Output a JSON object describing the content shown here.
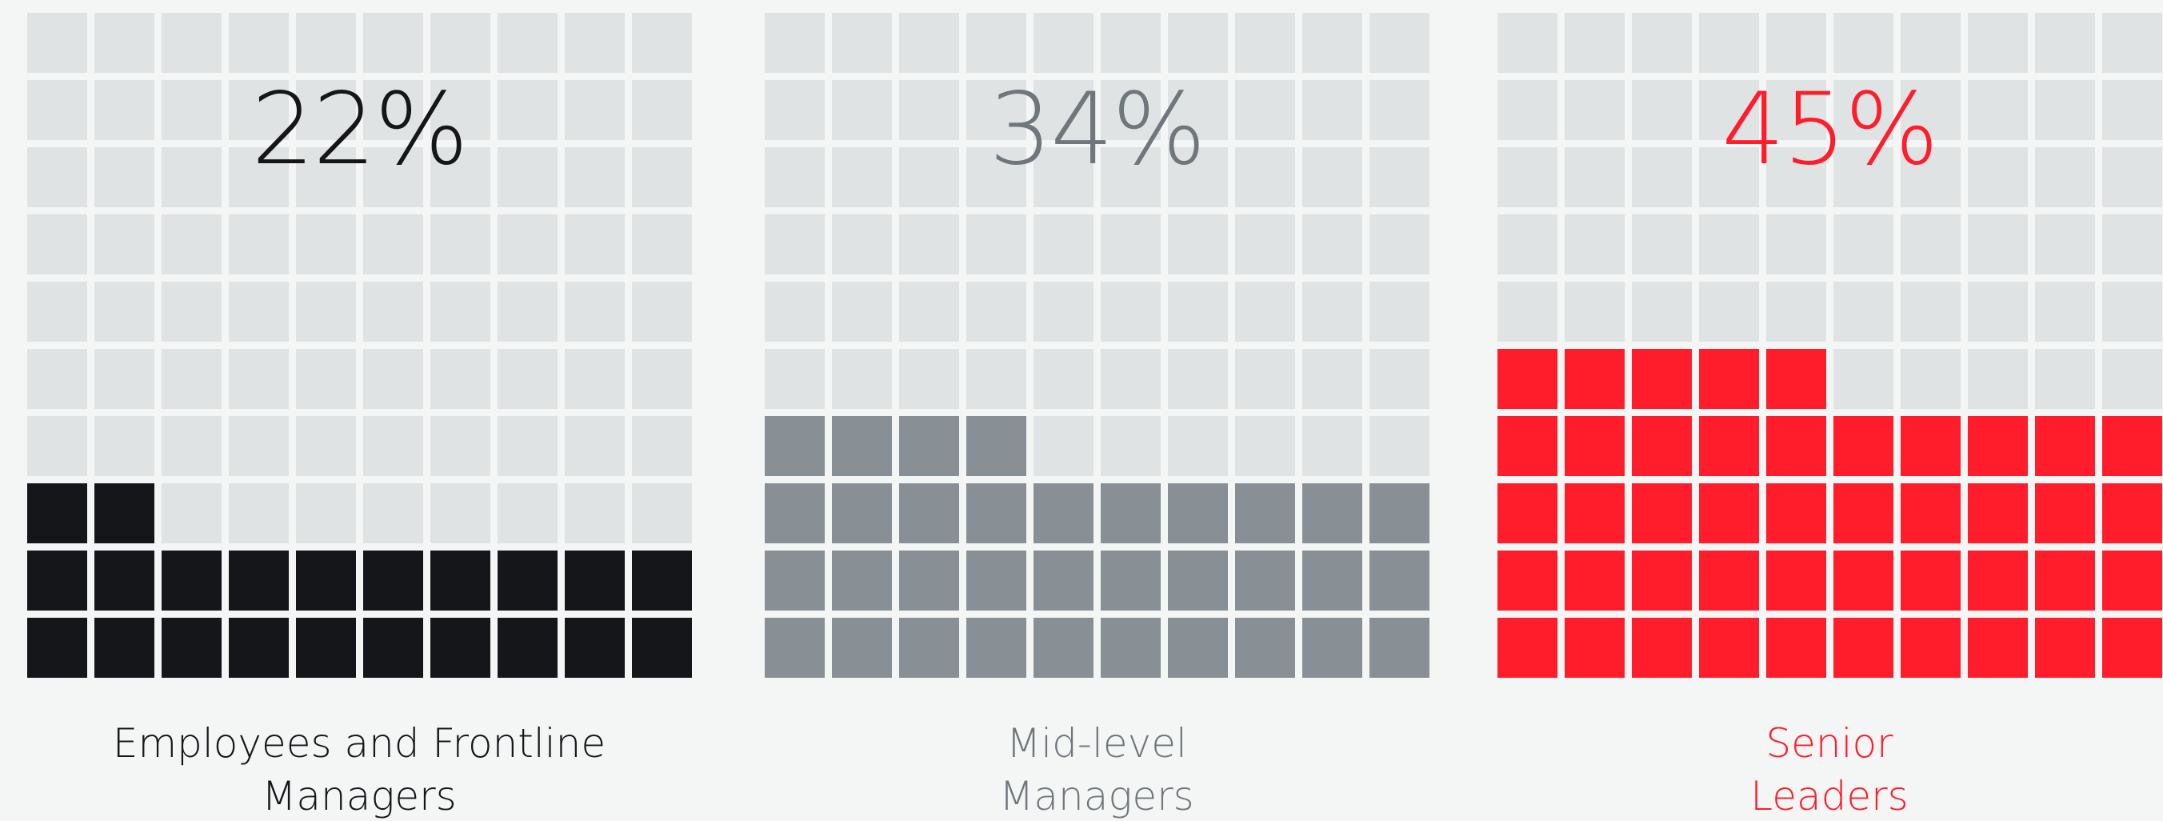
{
  "chart_data": [
    {
      "type": "waffle",
      "value": 22,
      "percent_label": "22%",
      "label_lines": [
        "Employees and Frontline",
        "Managers"
      ],
      "color": "#15161a",
      "text_color": "#15161a",
      "empty_color": "#e0e3e3"
    },
    {
      "type": "waffle",
      "value": 34,
      "percent_label": "34%",
      "label_lines": [
        "Mid-level",
        "Managers"
      ],
      "color": "#889095",
      "text_color": "#6f777c",
      "empty_color": "#e0e3e3"
    },
    {
      "type": "waffle",
      "value": 45,
      "percent_label": "45%",
      "label_lines": [
        "Senior",
        "Leaders"
      ],
      "color": "#ff1c2b",
      "text_color": "#ff1c2b",
      "empty_color": "#e0e3e3"
    }
  ]
}
